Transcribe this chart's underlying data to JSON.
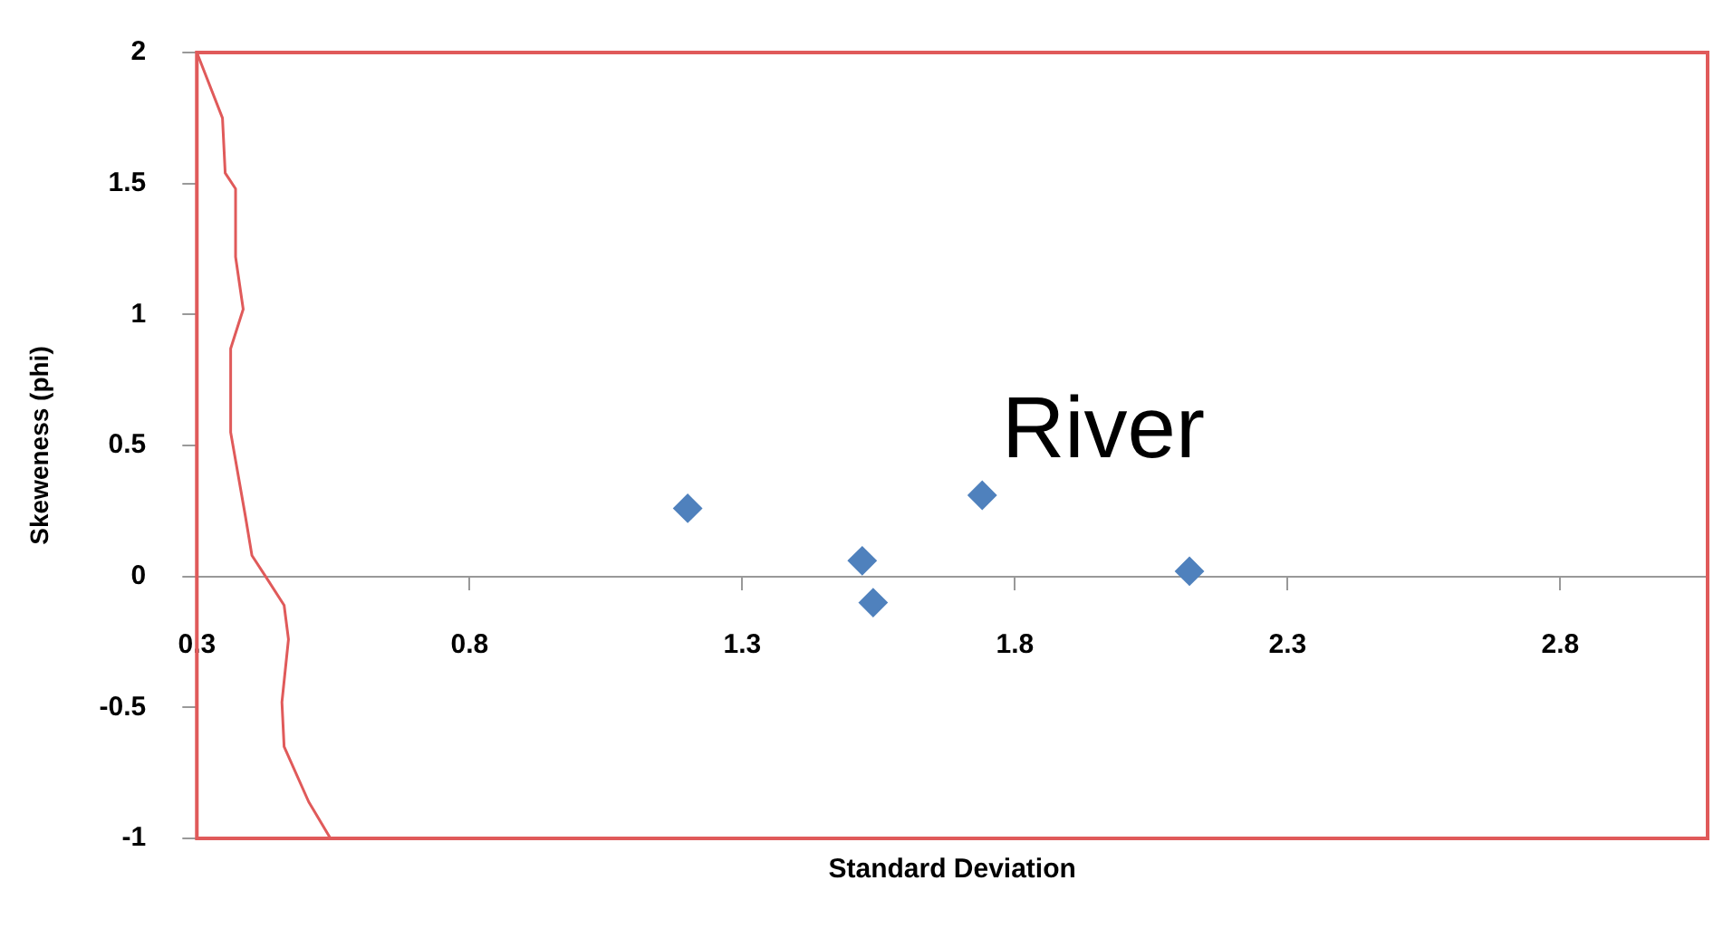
{
  "chart_data": {
    "type": "scatter",
    "xlabel": "Standard Deviation",
    "ylabel": "Skeweness (phi)",
    "annotations": [
      "River"
    ],
    "xlim": [
      0.3,
      3.07
    ],
    "xticks": [
      0.3,
      0.8,
      1.3,
      1.8,
      2.3,
      2.8
    ],
    "ylim": [
      -1,
      2
    ],
    "yticks": [
      -1,
      -0.5,
      0,
      0.5,
      1,
      1.5,
      2
    ],
    "grid": false,
    "legend": false,
    "series": [
      {
        "type": "line",
        "color": "#e05a5a",
        "marker": "none",
        "x": [
          0.3,
          0.347,
          0.352,
          0.371,
          0.371,
          0.385,
          0.362,
          0.362,
          0.389,
          0.401,
          0.426,
          0.46,
          0.468,
          0.456,
          0.46,
          0.505,
          0.545
        ],
        "values": [
          2.0,
          1.75,
          1.54,
          1.48,
          1.22,
          1.02,
          0.87,
          0.55,
          0.23,
          0.08,
          0.0,
          -0.11,
          -0.24,
          -0.48,
          -0.65,
          -0.86,
          -1.0
        ]
      },
      {
        "type": "scatter",
        "color": "#4f81bd",
        "marker": "diamond",
        "x": [
          1.2,
          1.52,
          1.54,
          1.74,
          2.12
        ],
        "values": [
          0.26,
          0.06,
          -0.1,
          0.31,
          0.02
        ]
      }
    ]
  }
}
